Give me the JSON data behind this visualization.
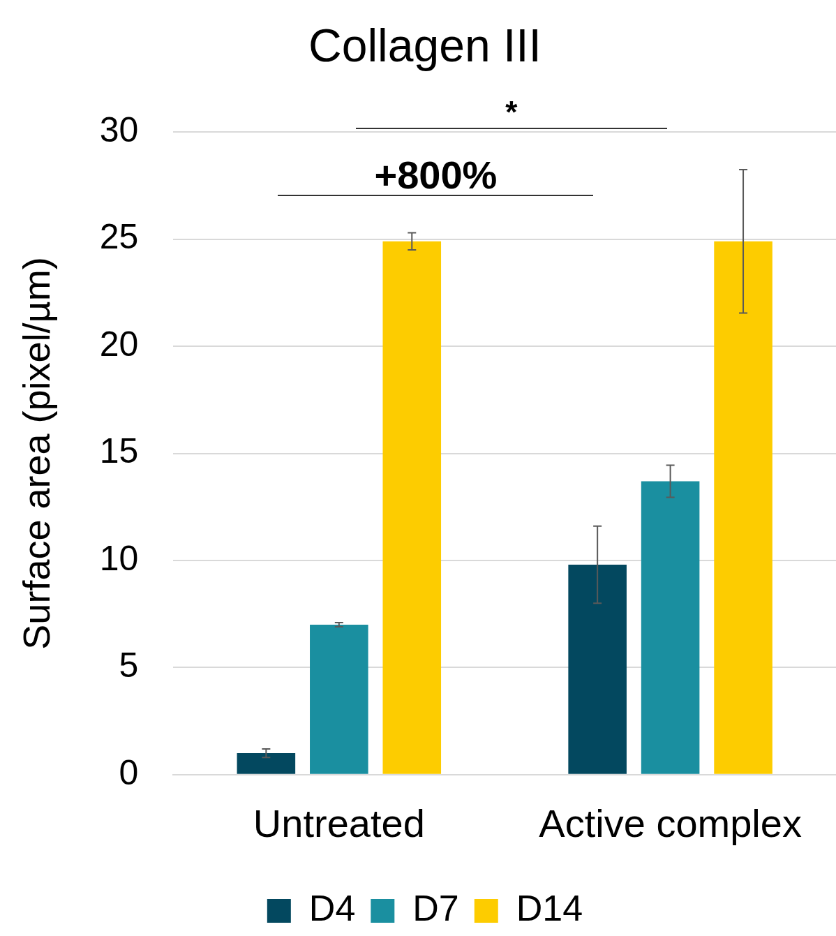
{
  "chart_data": {
    "type": "bar",
    "title": "Collagen III",
    "ylabel": "Surface area (pixel/µm)",
    "categories": [
      "Untreated",
      "Active complex"
    ],
    "series": [
      {
        "name": "D4",
        "color": "#03485f",
        "values": [
          1.0,
          9.8
        ],
        "errors": [
          0.2,
          1.8
        ]
      },
      {
        "name": "D7",
        "color": "#1a8fa0",
        "values": [
          7.0,
          13.7
        ],
        "errors": [
          0.1,
          0.75
        ]
      },
      {
        "name": "D14",
        "color": "#fdcc00",
        "values": [
          24.9,
          24.9
        ],
        "errors": [
          0.4,
          3.35
        ]
      }
    ],
    "ylim": [
      0,
      30
    ],
    "yticks": [
      0,
      5,
      10,
      15,
      20,
      25,
      30
    ],
    "grid": "y",
    "legend": "bottom",
    "annotations": [
      "*",
      "+800%"
    ]
  }
}
